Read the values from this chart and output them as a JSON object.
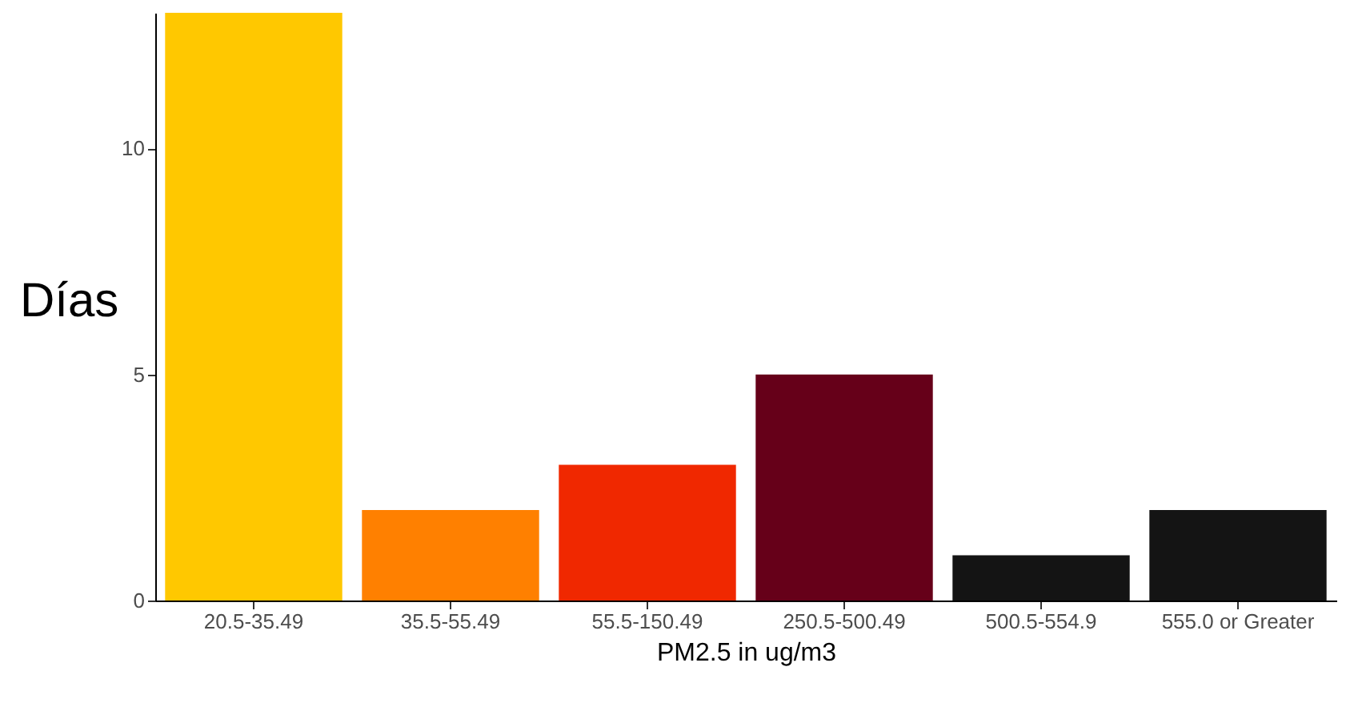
{
  "chart_data": {
    "type": "bar",
    "xlabel": "PM2.5 in ug/m3",
    "ylabel": "Días",
    "categories": [
      "20.5-35.49",
      "35.5-55.49",
      "55.5-150.49",
      "250.5-500.49",
      "500.5-554.9",
      "555.0 or Greater"
    ],
    "values": [
      13,
      2,
      3,
      5,
      1,
      2
    ],
    "colors": [
      "#ffc800",
      "#ff8000",
      "#f02800",
      "#660019",
      "#141414",
      "#141414"
    ],
    "ylim": [
      0,
      13
    ],
    "yticks": [
      0,
      5,
      10
    ],
    "grid": false
  }
}
